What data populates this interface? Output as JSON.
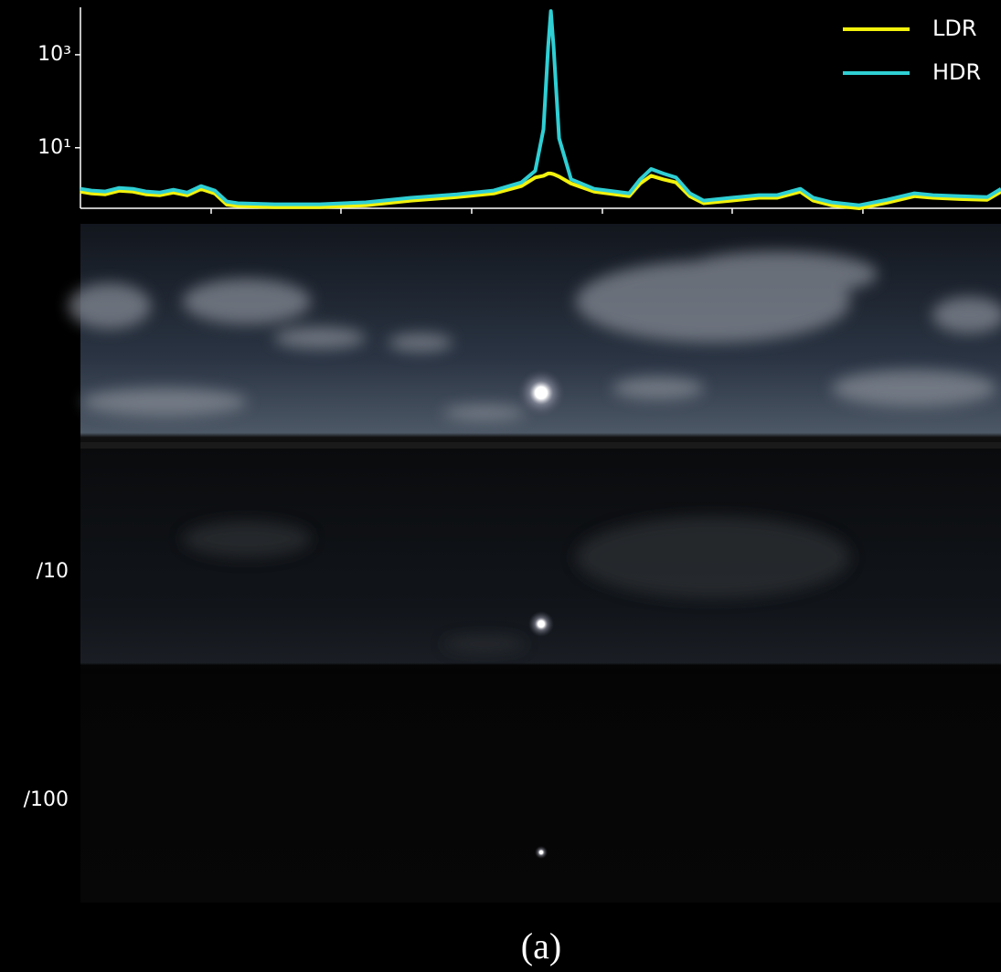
{
  "chart_data": {
    "type": "line",
    "log_y": true,
    "legend": "upper right",
    "x": [
      0,
      1.2,
      2.7,
      4.2,
      5.7,
      7.1,
      8.6,
      10.1,
      11.6,
      13.1,
      14.6,
      15.9,
      17.1,
      21.1,
      26.0,
      31.0,
      35.9,
      40.9,
      44.9,
      47.9,
      49.4,
      50.3,
      50.8,
      51.1,
      51.4,
      52.0,
      53.3,
      55.8,
      59.6,
      60.8,
      62.0,
      63.3,
      64.7,
      66.2,
      67.7,
      70.7,
      73.7,
      75.7,
      78.2,
      79.6,
      81.6,
      84.6,
      87.6,
      90.6,
      92.6,
      95.5,
      98.5,
      100
    ],
    "series": [
      {
        "name": "LDR",
        "color": "#f2f20c",
        "values": [
          1.14,
          1.04,
          1.0,
          1.19,
          1.14,
          1.0,
          0.95,
          1.09,
          0.95,
          1.3,
          1.04,
          0.6,
          0.56,
          0.53,
          0.53,
          0.58,
          0.73,
          0.87,
          1.04,
          1.5,
          2.3,
          2.5,
          2.8,
          2.8,
          2.7,
          2.4,
          1.7,
          1.14,
          0.91,
          1.7,
          2.5,
          2.1,
          1.8,
          0.91,
          0.64,
          0.73,
          0.84,
          0.84,
          1.14,
          0.73,
          0.58,
          0.5,
          0.66,
          0.91,
          0.84,
          0.79,
          0.76,
          1.14
        ]
      },
      {
        "name": "HDR",
        "color": "#2fcfd4",
        "values": [
          1.31,
          1.2,
          1.15,
          1.37,
          1.31,
          1.15,
          1.09,
          1.25,
          1.09,
          1.5,
          1.2,
          0.7,
          0.64,
          0.61,
          0.61,
          0.67,
          0.84,
          1.0,
          1.2,
          1.8,
          3.2,
          25,
          1450,
          8700,
          1450,
          16,
          2.1,
          1.31,
          1.05,
          2.1,
          3.5,
          2.8,
          2.3,
          1.05,
          0.73,
          0.84,
          0.96,
          0.96,
          1.31,
          0.84,
          0.67,
          0.58,
          0.76,
          1.05,
          0.96,
          0.91,
          0.87,
          1.31
        ]
      }
    ],
    "xlim": [
      0,
      100
    ],
    "xticks": [
      14.2,
      28.3,
      42.5,
      56.7,
      70.8,
      85.0
    ],
    "ylim": [
      0.5,
      10000
    ],
    "yticks": [
      {
        "value": 10,
        "label": "10¹"
      },
      {
        "value": 1000,
        "label": "10³"
      }
    ]
  },
  "image_labels": [
    "/10",
    "/100"
  ],
  "caption": "(a)"
}
